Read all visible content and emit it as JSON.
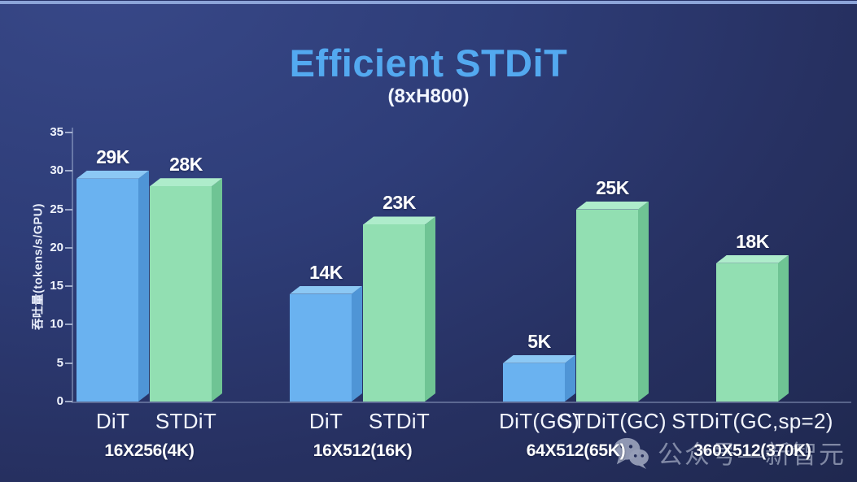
{
  "header": {
    "title": "Efficient STDiT",
    "subtitle": "(8xH800)"
  },
  "watermark": {
    "icon": "wechat-icon",
    "label": "公众号—新智元"
  },
  "chart_data": {
    "type": "bar",
    "title": "Efficient STDiT",
    "subtitle": "(8xH800)",
    "xlabel": "",
    "ylabel": "吞吐量(tokens/s/GPU)",
    "ylim": [
      0,
      35
    ],
    "yticks": [
      0,
      5,
      10,
      15,
      20,
      25,
      30,
      35
    ],
    "grid": false,
    "legend": "none",
    "style": "3d-bars",
    "colors": {
      "blue": {
        "front": "#6ab2f0",
        "top": "#8cc8f4",
        "side": "#4f95d6"
      },
      "green": {
        "front": "#92dfb2",
        "top": "#aeeccb",
        "side": "#6fc494"
      }
    },
    "background_color": "#2b3a72",
    "title_color": "#53a9f0",
    "groups": [
      {
        "label": "16X256(4K)",
        "bars": [
          {
            "name": "DiT",
            "value": 29,
            "display": "29K",
            "color": "blue"
          },
          {
            "name": "STDiT",
            "value": 28,
            "display": "28K",
            "color": "green"
          }
        ]
      },
      {
        "label": "16X512(16K)",
        "bars": [
          {
            "name": "DiT",
            "value": 14,
            "display": "14K",
            "color": "blue"
          },
          {
            "name": "STDiT",
            "value": 23,
            "display": "23K",
            "color": "green"
          }
        ]
      },
      {
        "label": "64X512(65K)",
        "bars": [
          {
            "name": "DiT(GC)",
            "value": 5,
            "display": "5K",
            "color": "blue"
          },
          {
            "name": "STDiT(GC)",
            "value": 25,
            "display": "25K",
            "color": "green"
          }
        ]
      },
      {
        "label": "360X512(370K)",
        "bars": [
          {
            "name": "STDiT(GC,sp=2)",
            "value": 18,
            "display": "18K",
            "color": "green"
          }
        ]
      }
    ]
  }
}
